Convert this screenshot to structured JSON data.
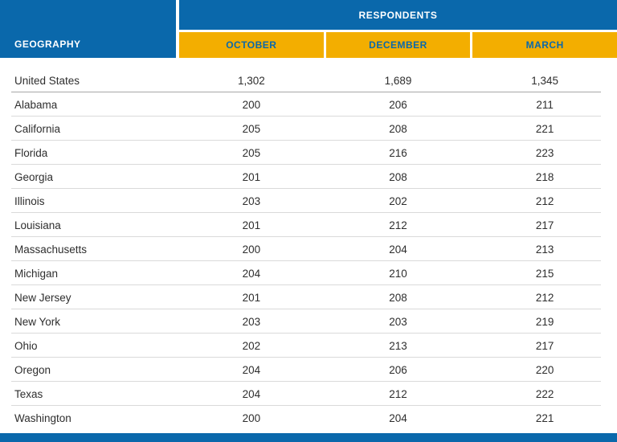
{
  "colors": {
    "blue": "#0a68ab",
    "gold": "#f3ae00"
  },
  "table": {
    "group_header": "RESPONDENTS",
    "geography_header": "GEOGRAPHY",
    "month_headers": [
      "OCTOBER",
      "DECEMBER",
      "MARCH"
    ]
  },
  "chart_data": {
    "type": "table",
    "title": "RESPONDENTS",
    "columns": [
      "GEOGRAPHY",
      "OCTOBER",
      "DECEMBER",
      "MARCH"
    ],
    "rows": [
      [
        "United States",
        "1,302",
        "1,689",
        "1,345"
      ],
      [
        "Alabama",
        "200",
        "206",
        "211"
      ],
      [
        "California",
        "205",
        "208",
        "221"
      ],
      [
        "Florida",
        "205",
        "216",
        "223"
      ],
      [
        "Georgia",
        "201",
        "208",
        "218"
      ],
      [
        "Illinois",
        "203",
        "202",
        "212"
      ],
      [
        "Louisiana",
        "201",
        "212",
        "217"
      ],
      [
        "Massachusetts",
        "200",
        "204",
        "213"
      ],
      [
        "Michigan",
        "204",
        "210",
        "215"
      ],
      [
        "New Jersey",
        "201",
        "208",
        "212"
      ],
      [
        "New York",
        "203",
        "203",
        "219"
      ],
      [
        "Ohio",
        "202",
        "213",
        "217"
      ],
      [
        "Oregon",
        "204",
        "206",
        "220"
      ],
      [
        "Texas",
        "204",
        "212",
        "222"
      ],
      [
        "Washington",
        "200",
        "204",
        "221"
      ]
    ]
  }
}
